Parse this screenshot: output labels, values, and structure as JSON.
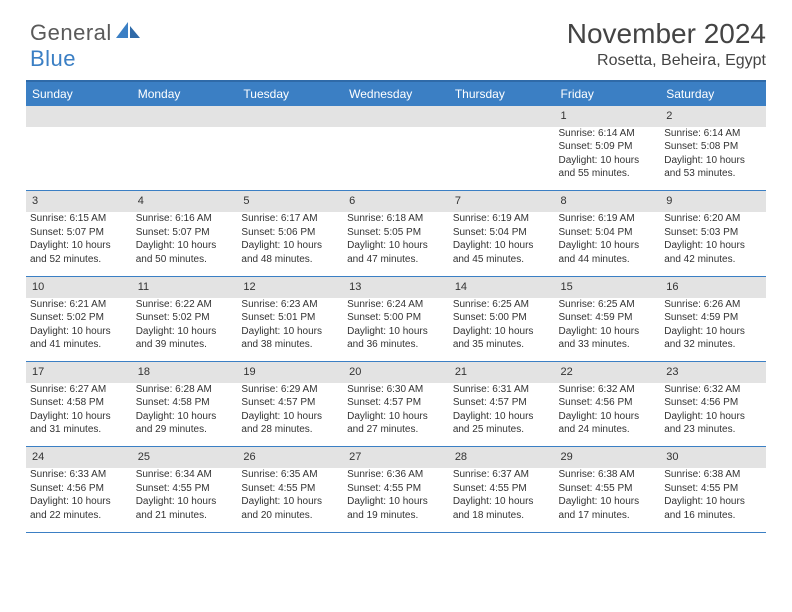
{
  "logo": {
    "word1": "General",
    "word2": "Blue"
  },
  "header": {
    "title": "November 2024",
    "location": "Rosetta, Beheira, Egypt"
  },
  "columns": [
    "Sunday",
    "Monday",
    "Tuesday",
    "Wednesday",
    "Thursday",
    "Friday",
    "Saturday"
  ],
  "styling": {
    "page_bg": "#ffffff",
    "header_bg": "#3b7fc4",
    "header_text": "#ffffff",
    "daynum_bg": "#e3e3e3",
    "cell_border": "#3b7fc4",
    "text_color": "#333333",
    "title_fontsize": 28,
    "location_fontsize": 16,
    "th_fontsize": 12,
    "daynum_fontsize": 11,
    "cell_fontsize": 10,
    "logo_fontsize": 22,
    "logo_gray": "#5a5a5a",
    "logo_blue": "#3b7fc4"
  },
  "weeks": [
    [
      null,
      null,
      null,
      null,
      null,
      {
        "n": "1",
        "sunrise": "Sunrise: 6:14 AM",
        "sunset": "Sunset: 5:09 PM",
        "daylight": "Daylight: 10 hours and 55 minutes."
      },
      {
        "n": "2",
        "sunrise": "Sunrise: 6:14 AM",
        "sunset": "Sunset: 5:08 PM",
        "daylight": "Daylight: 10 hours and 53 minutes."
      }
    ],
    [
      {
        "n": "3",
        "sunrise": "Sunrise: 6:15 AM",
        "sunset": "Sunset: 5:07 PM",
        "daylight": "Daylight: 10 hours and 52 minutes."
      },
      {
        "n": "4",
        "sunrise": "Sunrise: 6:16 AM",
        "sunset": "Sunset: 5:07 PM",
        "daylight": "Daylight: 10 hours and 50 minutes."
      },
      {
        "n": "5",
        "sunrise": "Sunrise: 6:17 AM",
        "sunset": "Sunset: 5:06 PM",
        "daylight": "Daylight: 10 hours and 48 minutes."
      },
      {
        "n": "6",
        "sunrise": "Sunrise: 6:18 AM",
        "sunset": "Sunset: 5:05 PM",
        "daylight": "Daylight: 10 hours and 47 minutes."
      },
      {
        "n": "7",
        "sunrise": "Sunrise: 6:19 AM",
        "sunset": "Sunset: 5:04 PM",
        "daylight": "Daylight: 10 hours and 45 minutes."
      },
      {
        "n": "8",
        "sunrise": "Sunrise: 6:19 AM",
        "sunset": "Sunset: 5:04 PM",
        "daylight": "Daylight: 10 hours and 44 minutes."
      },
      {
        "n": "9",
        "sunrise": "Sunrise: 6:20 AM",
        "sunset": "Sunset: 5:03 PM",
        "daylight": "Daylight: 10 hours and 42 minutes."
      }
    ],
    [
      {
        "n": "10",
        "sunrise": "Sunrise: 6:21 AM",
        "sunset": "Sunset: 5:02 PM",
        "daylight": "Daylight: 10 hours and 41 minutes."
      },
      {
        "n": "11",
        "sunrise": "Sunrise: 6:22 AM",
        "sunset": "Sunset: 5:02 PM",
        "daylight": "Daylight: 10 hours and 39 minutes."
      },
      {
        "n": "12",
        "sunrise": "Sunrise: 6:23 AM",
        "sunset": "Sunset: 5:01 PM",
        "daylight": "Daylight: 10 hours and 38 minutes."
      },
      {
        "n": "13",
        "sunrise": "Sunrise: 6:24 AM",
        "sunset": "Sunset: 5:00 PM",
        "daylight": "Daylight: 10 hours and 36 minutes."
      },
      {
        "n": "14",
        "sunrise": "Sunrise: 6:25 AM",
        "sunset": "Sunset: 5:00 PM",
        "daylight": "Daylight: 10 hours and 35 minutes."
      },
      {
        "n": "15",
        "sunrise": "Sunrise: 6:25 AM",
        "sunset": "Sunset: 4:59 PM",
        "daylight": "Daylight: 10 hours and 33 minutes."
      },
      {
        "n": "16",
        "sunrise": "Sunrise: 6:26 AM",
        "sunset": "Sunset: 4:59 PM",
        "daylight": "Daylight: 10 hours and 32 minutes."
      }
    ],
    [
      {
        "n": "17",
        "sunrise": "Sunrise: 6:27 AM",
        "sunset": "Sunset: 4:58 PM",
        "daylight": "Daylight: 10 hours and 31 minutes."
      },
      {
        "n": "18",
        "sunrise": "Sunrise: 6:28 AM",
        "sunset": "Sunset: 4:58 PM",
        "daylight": "Daylight: 10 hours and 29 minutes."
      },
      {
        "n": "19",
        "sunrise": "Sunrise: 6:29 AM",
        "sunset": "Sunset: 4:57 PM",
        "daylight": "Daylight: 10 hours and 28 minutes."
      },
      {
        "n": "20",
        "sunrise": "Sunrise: 6:30 AM",
        "sunset": "Sunset: 4:57 PM",
        "daylight": "Daylight: 10 hours and 27 minutes."
      },
      {
        "n": "21",
        "sunrise": "Sunrise: 6:31 AM",
        "sunset": "Sunset: 4:57 PM",
        "daylight": "Daylight: 10 hours and 25 minutes."
      },
      {
        "n": "22",
        "sunrise": "Sunrise: 6:32 AM",
        "sunset": "Sunset: 4:56 PM",
        "daylight": "Daylight: 10 hours and 24 minutes."
      },
      {
        "n": "23",
        "sunrise": "Sunrise: 6:32 AM",
        "sunset": "Sunset: 4:56 PM",
        "daylight": "Daylight: 10 hours and 23 minutes."
      }
    ],
    [
      {
        "n": "24",
        "sunrise": "Sunrise: 6:33 AM",
        "sunset": "Sunset: 4:56 PM",
        "daylight": "Daylight: 10 hours and 22 minutes."
      },
      {
        "n": "25",
        "sunrise": "Sunrise: 6:34 AM",
        "sunset": "Sunset: 4:55 PM",
        "daylight": "Daylight: 10 hours and 21 minutes."
      },
      {
        "n": "26",
        "sunrise": "Sunrise: 6:35 AM",
        "sunset": "Sunset: 4:55 PM",
        "daylight": "Daylight: 10 hours and 20 minutes."
      },
      {
        "n": "27",
        "sunrise": "Sunrise: 6:36 AM",
        "sunset": "Sunset: 4:55 PM",
        "daylight": "Daylight: 10 hours and 19 minutes."
      },
      {
        "n": "28",
        "sunrise": "Sunrise: 6:37 AM",
        "sunset": "Sunset: 4:55 PM",
        "daylight": "Daylight: 10 hours and 18 minutes."
      },
      {
        "n": "29",
        "sunrise": "Sunrise: 6:38 AM",
        "sunset": "Sunset: 4:55 PM",
        "daylight": "Daylight: 10 hours and 17 minutes."
      },
      {
        "n": "30",
        "sunrise": "Sunrise: 6:38 AM",
        "sunset": "Sunset: 4:55 PM",
        "daylight": "Daylight: 10 hours and 16 minutes."
      }
    ]
  ]
}
